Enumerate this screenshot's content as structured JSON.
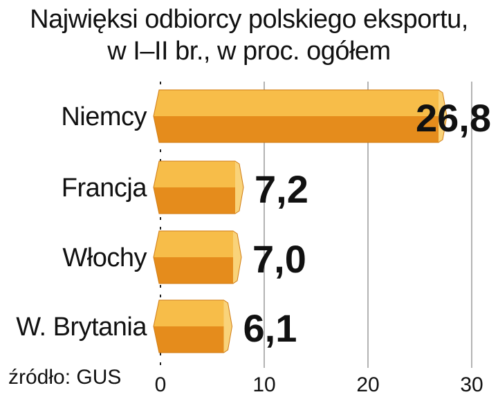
{
  "title_lines": [
    "Najwięksi odbiorcy polskiego eksportu,",
    "w I–II br., w proc. ogółem"
  ],
  "source": "źródło: GUS",
  "colors": {
    "bar_top": "#f7bd49",
    "bar_bottom": "#e58c1c",
    "bar_cap": "#f9d37a",
    "text": "#111111",
    "grid": "#9a9a9a"
  },
  "chart_data": {
    "type": "bar",
    "orientation": "horizontal",
    "title": "Najwięksi odbiorcy polskiego eksportu, w I–II br., w proc. ogółem",
    "categories": [
      "Niemcy",
      "Francja",
      "Włochy",
      "W. Brytania"
    ],
    "values": [
      26.8,
      7.2,
      7.0,
      6.1
    ],
    "value_labels": [
      "26,8",
      "7,2",
      "7,0",
      "6,1"
    ],
    "xlim": [
      0,
      30
    ],
    "x_ticks": [
      0,
      10,
      20,
      30
    ],
    "x_tick_labels": [
      "0",
      "10",
      "20",
      "30"
    ],
    "xlabel": "",
    "ylabel": "",
    "grid": true
  }
}
